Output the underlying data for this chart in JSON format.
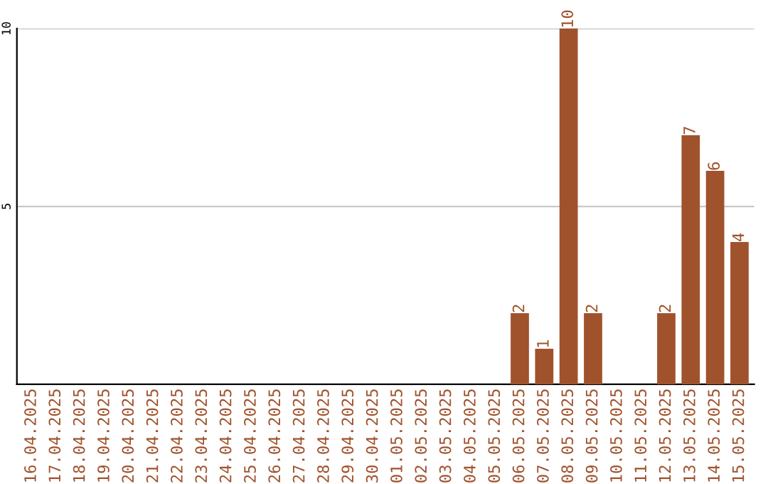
{
  "chart_data": {
    "type": "bar",
    "categories": [
      "16.04.2025",
      "17.04.2025",
      "18.04.2025",
      "19.04.2025",
      "20.04.2025",
      "21.04.2025",
      "22.04.2025",
      "23.04.2025",
      "24.04.2025",
      "25.04.2025",
      "26.04.2025",
      "27.04.2025",
      "28.04.2025",
      "29.04.2025",
      "30.04.2025",
      "01.05.2025",
      "02.05.2025",
      "03.05.2025",
      "04.05.2025",
      "05.05.2025",
      "06.05.2025",
      "07.05.2025",
      "08.05.2025",
      "09.05.2025",
      "10.05.2025",
      "11.05.2025",
      "12.05.2025",
      "13.05.2025",
      "14.05.2025",
      "15.05.2025"
    ],
    "values": [
      0,
      0,
      0,
      0,
      0,
      0,
      0,
      0,
      0,
      0,
      0,
      0,
      0,
      0,
      0,
      0,
      0,
      0,
      0,
      0,
      2,
      1,
      10,
      2,
      0,
      0,
      2,
      7,
      6,
      4
    ],
    "value_labels": [
      null,
      null,
      null,
      null,
      null,
      null,
      null,
      null,
      null,
      null,
      null,
      null,
      null,
      null,
      null,
      null,
      null,
      null,
      null,
      null,
      "2",
      "1",
      "10",
      "2",
      null,
      null,
      "2",
      "7",
      "6",
      "4"
    ],
    "color": "#a0522d",
    "ylim": [
      0,
      10
    ],
    "yticks": [
      5,
      10
    ],
    "grid": "y"
  }
}
